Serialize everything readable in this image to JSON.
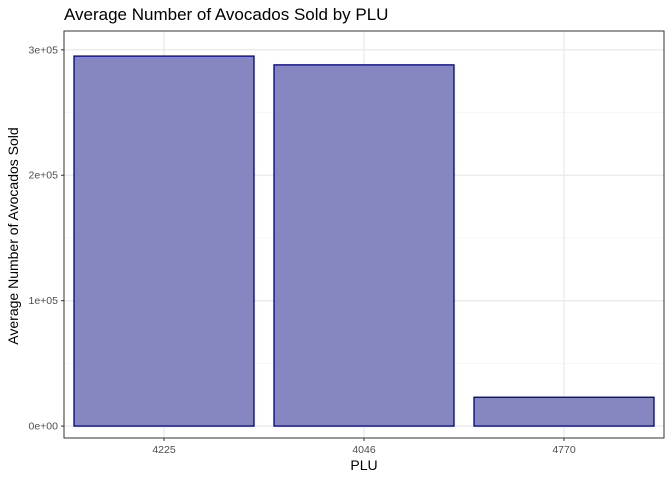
{
  "chart_data": {
    "type": "bar",
    "title": "Average Number of Avocados Sold by PLU",
    "xlabel": "PLU",
    "ylabel": "Average Number of Avocados Sold",
    "categories": [
      "4225",
      "4046",
      "4770"
    ],
    "values": [
      295000,
      288000,
      23000
    ],
    "ylim": [
      -9500,
      315000
    ],
    "y_ticks": [
      0,
      100000,
      200000,
      300000
    ],
    "y_tick_labels": [
      "0e+00",
      "1e+05",
      "2e+05",
      "3e+05"
    ],
    "grid": true,
    "bar_fill": "#8080bd",
    "bar_stroke": "#00008b",
    "grid_major_color": "#e6e6e6",
    "grid_minor_color": "#f2f2f2",
    "panel_border_color": "#333333"
  }
}
